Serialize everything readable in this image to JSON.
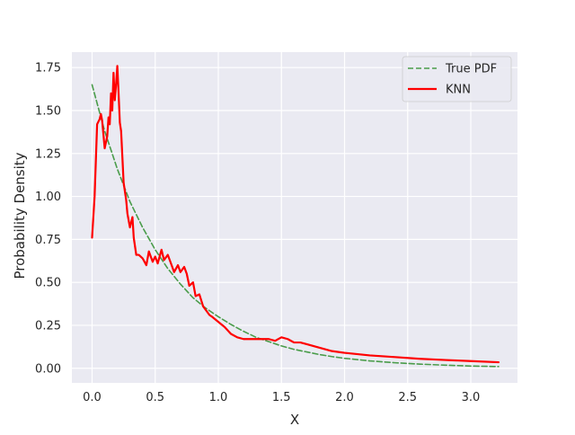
{
  "chart_data": {
    "type": "line",
    "title": "",
    "xlabel": "X",
    "ylabel": "Probability Density",
    "xlim": [
      -0.16,
      3.37
    ],
    "ylim": [
      -0.085,
      1.84
    ],
    "xticks": [
      0.0,
      0.5,
      1.0,
      1.5,
      2.0,
      2.5,
      3.0
    ],
    "xtick_labels": [
      "0.0",
      "0.5",
      "1.0",
      "1.5",
      "2.0",
      "2.5",
      "3.0"
    ],
    "yticks": [
      0.0,
      0.25,
      0.5,
      0.75,
      1.0,
      1.25,
      1.5,
      1.75
    ],
    "ytick_labels": [
      "0.00",
      "0.25",
      "0.50",
      "0.75",
      "1.00",
      "1.25",
      "1.50",
      "1.75"
    ],
    "grid": true,
    "legend_position": "top-right",
    "background": "#eaeaf2",
    "series": [
      {
        "name": "True PDF",
        "color": "#4a9c4a",
        "dash": "dashed",
        "x": [
          0.0,
          0.1,
          0.2,
          0.3,
          0.4,
          0.5,
          0.6,
          0.7,
          0.8,
          0.9,
          1.0,
          1.1,
          1.2,
          1.3,
          1.4,
          1.5,
          1.6,
          1.7,
          1.8,
          1.9,
          2.0,
          2.2,
          2.4,
          2.6,
          2.8,
          3.0,
          3.22
        ],
        "y": [
          1.65,
          1.38,
          1.16,
          0.97,
          0.82,
          0.69,
          0.58,
          0.49,
          0.41,
          0.35,
          0.3,
          0.255,
          0.215,
          0.18,
          0.155,
          0.13,
          0.11,
          0.095,
          0.08,
          0.068,
          0.058,
          0.043,
          0.032,
          0.024,
          0.018,
          0.013,
          0.01
        ]
      },
      {
        "name": "KNN",
        "color": "#ff0000",
        "dash": "solid",
        "x": [
          0.0,
          0.02,
          0.04,
          0.06,
          0.07,
          0.08,
          0.1,
          0.12,
          0.13,
          0.14,
          0.15,
          0.16,
          0.17,
          0.18,
          0.19,
          0.2,
          0.21,
          0.22,
          0.23,
          0.25,
          0.27,
          0.28,
          0.3,
          0.32,
          0.33,
          0.35,
          0.37,
          0.4,
          0.43,
          0.45,
          0.48,
          0.5,
          0.52,
          0.55,
          0.57,
          0.6,
          0.63,
          0.65,
          0.68,
          0.7,
          0.73,
          0.75,
          0.77,
          0.8,
          0.82,
          0.85,
          0.88,
          0.9,
          0.93,
          0.95,
          1.0,
          1.05,
          1.1,
          1.15,
          1.2,
          1.25,
          1.3,
          1.35,
          1.4,
          1.45,
          1.5,
          1.55,
          1.6,
          1.65,
          1.7,
          1.8,
          1.9,
          2.0,
          2.2,
          2.4,
          2.6,
          2.8,
          3.0,
          3.22
        ],
        "y": [
          0.76,
          1.0,
          1.42,
          1.45,
          1.48,
          1.44,
          1.28,
          1.35,
          1.46,
          1.42,
          1.6,
          1.5,
          1.72,
          1.56,
          1.65,
          1.76,
          1.6,
          1.43,
          1.38,
          1.08,
          0.98,
          0.9,
          0.82,
          0.88,
          0.76,
          0.66,
          0.66,
          0.64,
          0.6,
          0.68,
          0.62,
          0.65,
          0.61,
          0.69,
          0.63,
          0.66,
          0.6,
          0.56,
          0.6,
          0.56,
          0.59,
          0.55,
          0.48,
          0.5,
          0.42,
          0.43,
          0.36,
          0.34,
          0.31,
          0.3,
          0.27,
          0.24,
          0.2,
          0.18,
          0.17,
          0.17,
          0.17,
          0.17,
          0.17,
          0.16,
          0.18,
          0.17,
          0.15,
          0.15,
          0.14,
          0.12,
          0.1,
          0.09,
          0.075,
          0.065,
          0.055,
          0.048,
          0.042,
          0.035
        ]
      }
    ]
  }
}
